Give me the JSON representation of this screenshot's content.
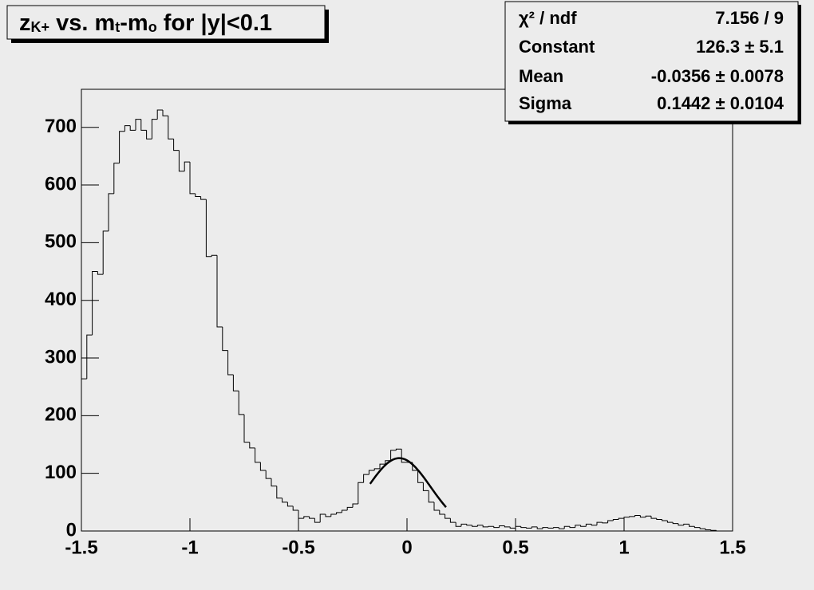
{
  "chart_data": {
    "type": "histogram",
    "title": [
      {
        "text": "z"
      },
      {
        "text": "K+",
        "sub": true
      },
      {
        "text": " vs. m"
      },
      {
        "text": "t",
        "sub": true
      },
      {
        "text": "-m"
      },
      {
        "text": "o",
        "sub": true
      },
      {
        "text": " for |y|<0.1"
      }
    ],
    "bins": [
      -1.5,
      -1.475,
      -1.45,
      -1.425,
      -1.4,
      -1.375,
      -1.35,
      -1.325,
      -1.3,
      -1.275,
      -1.25,
      -1.225,
      -1.2,
      -1.175,
      -1.15,
      -1.125,
      -1.1,
      -1.075,
      -1.05,
      -1.025,
      -1,
      -0.975,
      -0.95,
      -0.925,
      -0.9,
      -0.875,
      -0.85,
      -0.825,
      -0.8,
      -0.775,
      -0.75,
      -0.725,
      -0.7,
      -0.675,
      -0.65,
      -0.625,
      -0.6,
      -0.575,
      -0.55,
      -0.525,
      -0.5,
      -0.475,
      -0.45,
      -0.425,
      -0.4,
      -0.375,
      -0.35,
      -0.325,
      -0.3,
      -0.275,
      -0.25,
      -0.225,
      -0.2,
      -0.175,
      -0.15,
      -0.125,
      -0.1,
      -0.075,
      -0.05,
      -0.025,
      0,
      0.025,
      0.05,
      0.075,
      0.1,
      0.125,
      0.15,
      0.175,
      0.2,
      0.225,
      0.25,
      0.275,
      0.3,
      0.325,
      0.35,
      0.375,
      0.4,
      0.425,
      0.45,
      0.475,
      0.5,
      0.525,
      0.55,
      0.575,
      0.6,
      0.625,
      0.65,
      0.675,
      0.7,
      0.725,
      0.75,
      0.775,
      0.8,
      0.825,
      0.85,
      0.875,
      0.9,
      0.925,
      0.95,
      0.975,
      1,
      1.025,
      1.05,
      1.075,
      1.1,
      1.125,
      1.15,
      1.175,
      1.2,
      1.225,
      1.25,
      1.275,
      1.3,
      1.325,
      1.35,
      1.375,
      1.4,
      1.425,
      1.45,
      1.475,
      1.5
    ],
    "values": [
      264,
      340,
      450,
      445,
      520,
      585,
      638,
      693,
      703,
      695,
      714,
      695,
      680,
      714,
      730,
      720,
      680,
      660,
      624,
      640,
      585,
      580,
      575,
      476,
      478,
      354,
      313,
      271,
      243,
      202,
      154,
      144,
      119,
      105,
      91,
      78,
      57,
      50,
      43,
      36,
      22,
      25,
      22,
      15,
      29,
      25,
      29,
      32,
      36,
      41,
      47,
      84,
      98,
      105,
      108,
      116,
      122,
      140,
      142,
      119,
      119,
      105,
      84,
      70,
      50,
      36,
      29,
      22,
      15,
      8,
      12,
      10,
      8,
      10,
      7,
      8,
      6,
      9,
      7,
      5,
      8,
      6,
      5,
      7,
      4,
      6,
      5,
      6,
      4,
      8,
      6,
      10,
      8,
      12,
      10,
      15,
      14,
      18,
      20,
      22,
      24,
      25,
      27,
      24,
      26,
      22,
      20,
      18,
      15,
      13,
      10,
      12,
      8,
      6,
      4,
      2,
      1,
      0,
      0,
      0
    ],
    "color": "#000000",
    "fit": {
      "constant": 126.3,
      "mean": -0.0356,
      "sigma": 0.1442,
      "range": [
        -0.17,
        0.18
      ],
      "color": "#000000"
    },
    "stats": [
      {
        "name": "χ² / ndf",
        "label": "7.156 / 9"
      },
      {
        "name": "Constant",
        "label": "126.3 ± 5.1"
      },
      {
        "name": "Mean",
        "label": "-0.0356 ± 0.0078"
      },
      {
        "name": "Sigma",
        "label": "0.1442 ± 0.0104"
      }
    ],
    "xlim": [
      -1.5,
      1.5
    ],
    "xticks": [
      -1.5,
      -1,
      -0.5,
      0,
      0.5,
      1,
      1.5
    ],
    "ylim": [
      0,
      766
    ],
    "yticks": [
      0,
      100,
      200,
      300,
      400,
      500,
      600,
      700
    ]
  }
}
